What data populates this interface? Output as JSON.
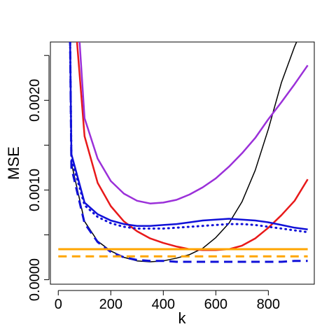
{
  "chart_data": {
    "type": "line",
    "xlabel": "k",
    "ylabel": "MSE",
    "xlim": [
      -30,
      975
    ],
    "ylim": [
      -5e-05,
      0.00265
    ],
    "x_ticks": [
      0,
      200,
      400,
      600,
      800
    ],
    "x_tick_labels": [
      "0",
      "200",
      "400",
      "600",
      "800"
    ],
    "y_ticks": [
      0.0,
      0.001,
      0.002
    ],
    "y_tick_labels": [
      "0.0000",
      "0.0010",
      "0.0020"
    ],
    "y_minor_ticks": [
      0.0005,
      0.0015,
      0.0025
    ],
    "grid": false,
    "series": [
      {
        "color": "#000000",
        "style": "solid",
        "width": 1.5,
        "x": [
          50,
          100,
          150,
          200,
          250,
          300,
          350,
          400,
          450,
          500,
          550,
          600,
          650,
          700,
          750,
          800,
          850,
          900,
          915
        ],
        "y": [
          0.0013,
          0.00065,
          0.00043,
          0.00032,
          0.00025,
          0.00021,
          0.0002,
          0.00021,
          0.00024,
          0.00028,
          0.00035,
          0.00047,
          0.00063,
          0.00087,
          0.00122,
          0.00168,
          0.0022,
          0.0026,
          0.0027
        ]
      },
      {
        "color": "#e8191a",
        "style": "solid",
        "width": 2.5,
        "x": [
          70,
          100,
          150,
          200,
          250,
          300,
          350,
          400,
          450,
          500,
          550,
          600,
          650,
          700,
          750,
          800,
          850,
          900,
          950
        ],
        "y": [
          0.0027,
          0.0016,
          0.00108,
          0.00082,
          0.00065,
          0.00054,
          0.00046,
          0.00041,
          0.00037,
          0.00034,
          0.00033,
          0.00033,
          0.00034,
          0.00038,
          0.00046,
          0.00058,
          0.00072,
          0.00088,
          0.00112
        ]
      },
      {
        "color": "#9b30d9",
        "style": "solid",
        "width": 2.5,
        "x": [
          80,
          100,
          150,
          200,
          250,
          300,
          350,
          400,
          450,
          500,
          550,
          600,
          650,
          700,
          750,
          800,
          850,
          900,
          950
        ],
        "y": [
          0.0027,
          0.0018,
          0.00135,
          0.0011,
          0.00096,
          0.00088,
          0.00085,
          0.00086,
          0.00089,
          0.00095,
          0.00103,
          0.00113,
          0.00126,
          0.00141,
          0.00158,
          0.00179,
          0.00198,
          0.00218,
          0.00239
        ]
      },
      {
        "color": "#1010d8",
        "style": "solid",
        "width": 2.5,
        "x": [
          45,
          50,
          100,
          150,
          200,
          250,
          300,
          350,
          400,
          450,
          500,
          550,
          600,
          650,
          700,
          750,
          800,
          850,
          900,
          950
        ],
        "y": [
          0.0027,
          0.0014,
          0.00086,
          0.00073,
          0.00066,
          0.00062,
          0.0006,
          0.0006,
          0.00061,
          0.00062,
          0.00064,
          0.00066,
          0.00067,
          0.00068,
          0.00067,
          0.00066,
          0.00064,
          0.00061,
          0.00058,
          0.00056
        ]
      },
      {
        "color": "#1010d8",
        "style": "dotted",
        "width": 3,
        "x": [
          45,
          50,
          100,
          150,
          200,
          250,
          300,
          350,
          400,
          450,
          500,
          550,
          600,
          650,
          700,
          750,
          800,
          850,
          900,
          950
        ],
        "y": [
          0.0027,
          0.00135,
          0.00083,
          0.0007,
          0.00063,
          0.00059,
          0.00057,
          0.00057,
          0.00057,
          0.00058,
          0.00059,
          0.0006,
          0.00061,
          0.00062,
          0.00062,
          0.00061,
          0.00059,
          0.00057,
          0.00055,
          0.00053
        ]
      },
      {
        "color": "#1010d8",
        "style": "dashed",
        "width": 3,
        "x": [
          45,
          50,
          100,
          150,
          200,
          250,
          300,
          350,
          400,
          450,
          500,
          550,
          600,
          650,
          700,
          750,
          800,
          850,
          900,
          950
        ],
        "y": [
          0.0027,
          0.00125,
          0.00063,
          0.00042,
          0.00031,
          0.00025,
          0.00022,
          0.00021,
          0.00021,
          0.0002,
          0.0002,
          0.0002,
          0.0002,
          0.0002,
          0.0002,
          0.0002,
          0.0002,
          0.0002,
          0.00021,
          0.00021
        ]
      },
      {
        "color": "#ffa500",
        "style": "solid",
        "width": 3,
        "x": [
          0,
          950
        ],
        "y": [
          0.00034,
          0.00034
        ]
      },
      {
        "color": "#ffa500",
        "style": "dashed",
        "width": 3,
        "x": [
          0,
          950
        ],
        "y": [
          0.00026,
          0.00026
        ]
      }
    ]
  }
}
